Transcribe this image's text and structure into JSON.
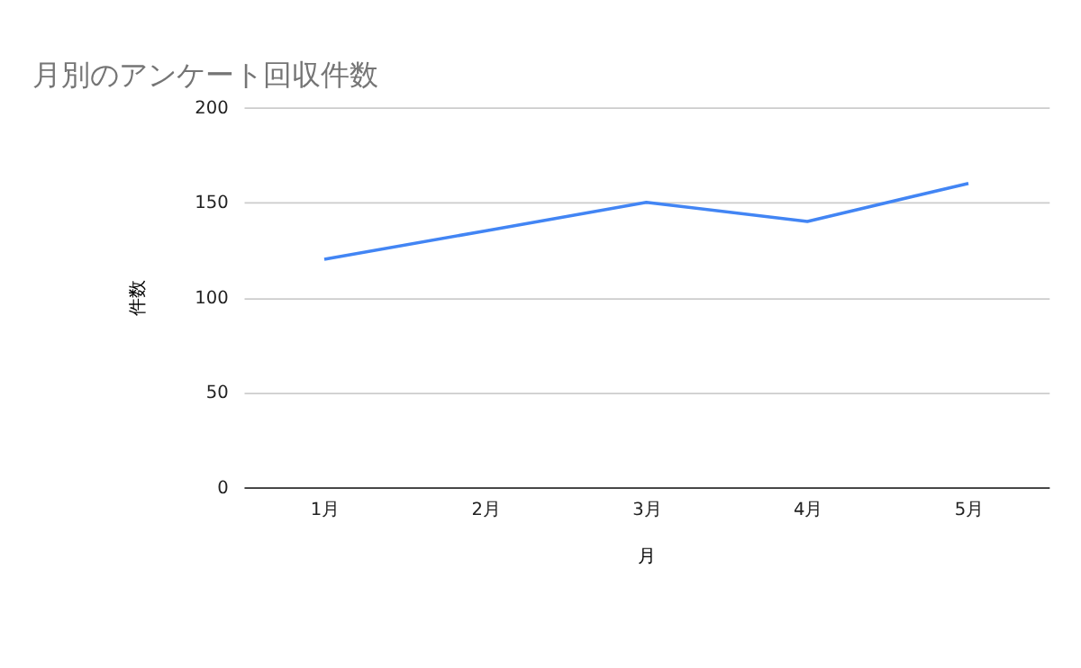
{
  "chart_data": {
    "type": "line",
    "title": "月別のアンケート回収件数",
    "xlabel": "月",
    "ylabel": "件数",
    "categories": [
      "1月",
      "2月",
      "3月",
      "4月",
      "5月"
    ],
    "series": [
      {
        "color": "#4285f4",
        "values": [
          120,
          135,
          150,
          140,
          160
        ]
      }
    ],
    "ylim": [
      0,
      200
    ],
    "yticks": [
      0,
      50,
      100,
      150,
      200
    ],
    "grid": "y",
    "marker": "none",
    "line_style": "solid"
  }
}
